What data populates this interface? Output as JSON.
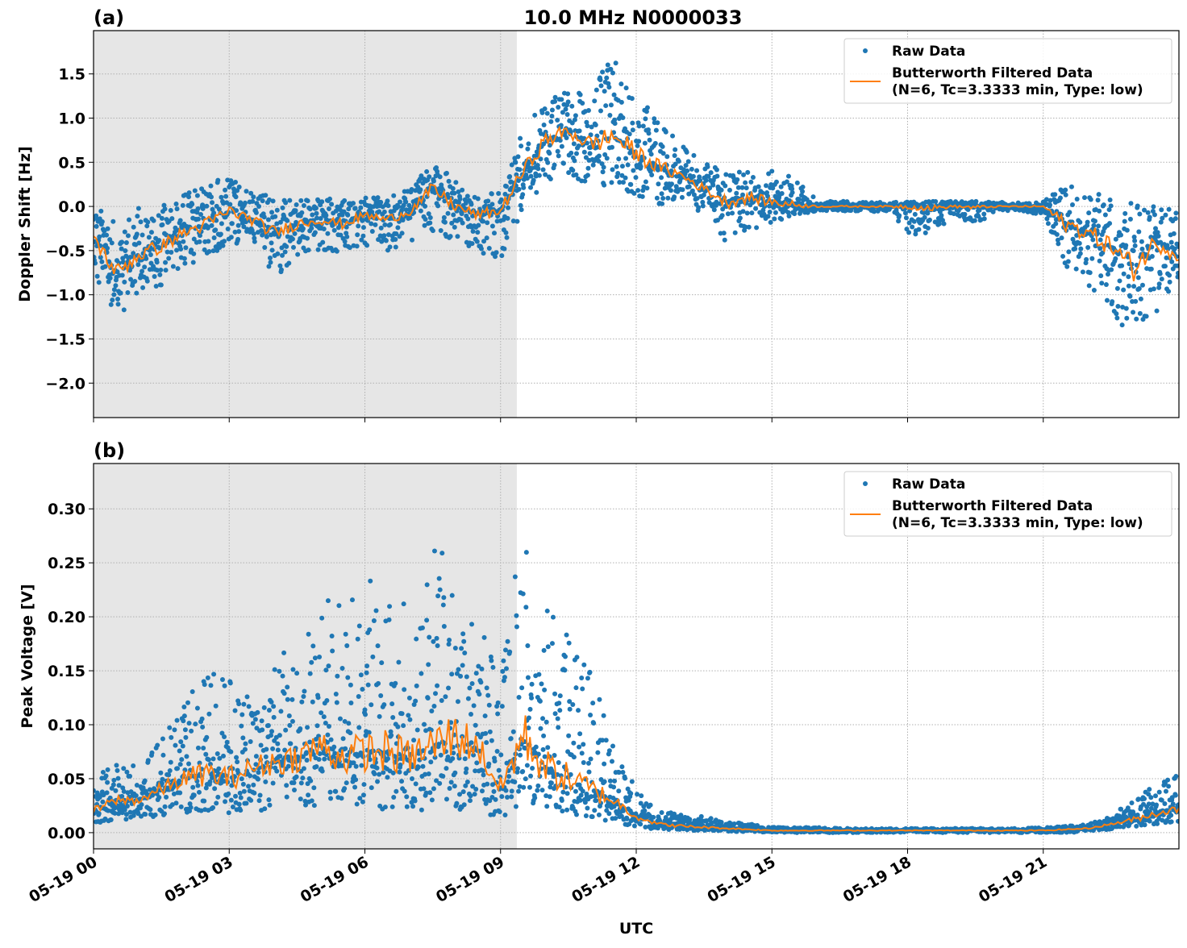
{
  "title": "10.0 MHz N0000033",
  "xlabel": "UTC",
  "colors": {
    "raw": "#1f77b4",
    "filtered": "#ff7f0e",
    "night_shade": "#e6e6e6"
  },
  "xticks": [
    "05-19 00",
    "05-19 03",
    "05-19 06",
    "05-19 09",
    "05-19 12",
    "05-19 15",
    "05-19 18",
    "05-19 21"
  ],
  "legend": {
    "raw": "Raw Data",
    "filtered_1": "Butterworth Filtered Data",
    "filtered_2": "(N=6, Tc=3.3333 min, Type: low)",
    "placement": "top-right"
  },
  "chart_data": [
    {
      "type": "scatter+line",
      "panel_label": "(a)",
      "ylabel": "Doppler Shift [Hz]",
      "x_unit": "hours UTC on 05-19",
      "xlim": [
        0,
        24
      ],
      "ylim": [
        -2.39,
        1.99
      ],
      "yticks": [
        1.5,
        1.0,
        0.5,
        0.0,
        -0.5,
        -1.0,
        -1.5,
        -2.0
      ],
      "ytick_labels": [
        "1.5",
        "1.0",
        "0.5",
        "0.0",
        "−0.5",
        "−1.0",
        "−1.5",
        "−2.0"
      ],
      "grid": true,
      "shaded_interval_hours": [
        0,
        9.36
      ],
      "x": [
        0,
        0.5,
        1,
        1.5,
        2,
        2.5,
        3,
        3.5,
        4,
        4.5,
        5,
        5.5,
        6,
        6.5,
        7,
        7.5,
        8,
        8.5,
        9,
        9.5,
        10,
        10.5,
        11,
        11.5,
        12,
        12.5,
        13,
        13.5,
        14,
        14.5,
        15,
        15.5,
        16,
        16.5,
        17,
        17.5,
        18,
        18.5,
        19,
        19.5,
        20,
        20.5,
        21,
        21.5,
        22,
        22.5,
        23,
        23.5,
        24
      ],
      "series": [
        {
          "name": "Butterworth Filtered Data",
          "values": [
            -0.35,
            -0.75,
            -0.55,
            -0.45,
            -0.3,
            -0.2,
            -0.05,
            -0.15,
            -0.3,
            -0.2,
            -0.15,
            -0.2,
            -0.1,
            -0.15,
            -0.05,
            0.2,
            0.0,
            -0.1,
            -0.05,
            0.4,
            0.75,
            0.85,
            0.7,
            0.8,
            0.6,
            0.45,
            0.35,
            0.2,
            0.05,
            0.1,
            0.05,
            0.02,
            0,
            0,
            0,
            0,
            0,
            -0.02,
            0,
            -0.01,
            0,
            0,
            0,
            -0.2,
            -0.3,
            -0.45,
            -0.7,
            -0.4,
            -0.55
          ]
        },
        {
          "name": "Raw Data",
          "low": [
            -0.8,
            -1.3,
            -1.0,
            -0.9,
            -0.7,
            -0.6,
            -0.4,
            -0.5,
            -0.8,
            -0.6,
            -0.5,
            -0.55,
            -0.45,
            -0.5,
            -0.4,
            -0.3,
            -0.4,
            -0.5,
            -0.7,
            0.0,
            0.25,
            0.35,
            0.2,
            0.25,
            0.1,
            0.0,
            0.0,
            -0.1,
            -0.45,
            -0.3,
            -0.2,
            -0.1,
            -0.05,
            -0.05,
            -0.06,
            -0.06,
            -0.3,
            -0.35,
            -0.1,
            -0.2,
            -0.05,
            -0.05,
            -0.1,
            -0.7,
            -0.9,
            -1.2,
            -1.6,
            -1.2,
            -1.0
          ],
          "high": [
            0.05,
            -0.2,
            0.0,
            0.0,
            0.15,
            0.3,
            0.35,
            0.2,
            0.1,
            0.1,
            0.1,
            0.1,
            0.1,
            0.1,
            0.2,
            0.55,
            0.3,
            0.15,
            0.15,
            0.9,
            1.25,
            1.3,
            1.3,
            1.75,
            1.3,
            0.95,
            0.7,
            0.5,
            0.4,
            0.4,
            0.4,
            0.35,
            0.06,
            0.06,
            0.05,
            0.05,
            0.05,
            0.06,
            0.06,
            0.06,
            0.05,
            0.05,
            0.05,
            0.3,
            0.2,
            0.1,
            0.05,
            0.05,
            0.0
          ]
        }
      ]
    },
    {
      "type": "scatter+line",
      "panel_label": "(b)",
      "ylabel": "Peak Voltage [V]",
      "x_unit": "hours UTC on 05-19",
      "xlim": [
        0,
        24
      ],
      "ylim": [
        -0.015,
        0.342
      ],
      "yticks": [
        0.3,
        0.25,
        0.2,
        0.15,
        0.1,
        0.05,
        0.0
      ],
      "ytick_labels": [
        "0.30",
        "0.25",
        "0.20",
        "0.15",
        "0.10",
        "0.05",
        "0.00"
      ],
      "grid": true,
      "shaded_interval_hours": [
        0,
        9.36
      ],
      "x": [
        0,
        0.5,
        1,
        1.5,
        2,
        2.5,
        3,
        3.5,
        4,
        4.5,
        5,
        5.5,
        6,
        6.5,
        7,
        7.5,
        8,
        8.5,
        9,
        9.5,
        10,
        10.5,
        11,
        11.5,
        12,
        12.5,
        13,
        13.5,
        14,
        14.5,
        15,
        15.5,
        16,
        16.5,
        17,
        17.5,
        18,
        18.5,
        19,
        19.5,
        20,
        20.5,
        21,
        21.5,
        22,
        22.5,
        23,
        23.5,
        24
      ],
      "series": [
        {
          "name": "Butterworth Filtered Data",
          "values": [
            0.02,
            0.03,
            0.03,
            0.04,
            0.05,
            0.055,
            0.05,
            0.06,
            0.065,
            0.07,
            0.08,
            0.07,
            0.075,
            0.075,
            0.07,
            0.08,
            0.09,
            0.08,
            0.04,
            0.09,
            0.06,
            0.05,
            0.04,
            0.03,
            0.015,
            0.008,
            0.006,
            0.005,
            0.004,
            0.003,
            0.002,
            0.002,
            0.002,
            0.002,
            0.002,
            0.002,
            0.002,
            0.002,
            0.002,
            0.002,
            0.002,
            0.002,
            0.002,
            0.003,
            0.004,
            0.008,
            0.012,
            0.018,
            0.022
          ]
        },
        {
          "name": "Raw Data",
          "low": [
            0.008,
            0.012,
            0.012,
            0.015,
            0.018,
            0.02,
            0.018,
            0.02,
            0.02,
            0.022,
            0.025,
            0.022,
            0.025,
            0.02,
            0.02,
            0.022,
            0.02,
            0.02,
            0.01,
            0.03,
            0.02,
            0.015,
            0.012,
            0.01,
            0.005,
            0.003,
            0.002,
            0.002,
            0.001,
            0.001,
            0.0,
            0.0,
            0.0,
            0.0,
            0.0,
            0.0,
            0.0,
            0.0,
            0.0,
            0.0,
            0.0,
            0.0,
            0.0,
            0.0,
            0.001,
            0.003,
            0.005,
            0.008,
            0.01
          ],
          "high": [
            0.05,
            0.07,
            0.06,
            0.09,
            0.12,
            0.15,
            0.15,
            0.14,
            0.16,
            0.18,
            0.22,
            0.22,
            0.23,
            0.26,
            0.2,
            0.28,
            0.27,
            0.2,
            0.14,
            0.31,
            0.22,
            0.18,
            0.15,
            0.08,
            0.04,
            0.02,
            0.018,
            0.015,
            0.01,
            0.008,
            0.005,
            0.005,
            0.005,
            0.004,
            0.004,
            0.004,
            0.004,
            0.004,
            0.004,
            0.004,
            0.004,
            0.004,
            0.005,
            0.006,
            0.008,
            0.015,
            0.035,
            0.045,
            0.055
          ]
        }
      ]
    }
  ]
}
